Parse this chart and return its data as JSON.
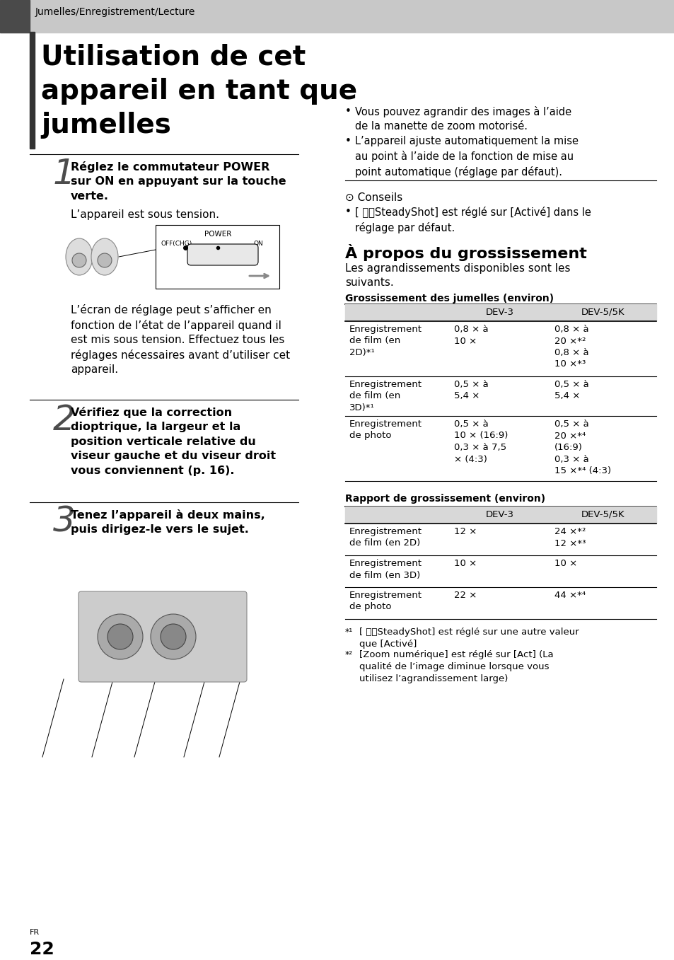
{
  "bg_color": "#ffffff",
  "table_header_bg": "#d8d8d8",
  "header_gray": "#c8c8c8",
  "header_dark": "#4a4a4a",
  "breadcrumb": "Jumelles/Enregistrement/Lecture",
  "title_line1": "Utilisation de cet",
  "title_line2": "appareil en tant que",
  "title_line3": "jumelles",
  "step1_num": "1",
  "step1_bold": "Réglez le commutateur POWER\nsur ON en appuyant sur la touche\nverte.",
  "step1_sub": "L’appareil est sous tension.",
  "step1_cont": "L’écran de réglage peut s’afficher en\nfonction de l’état de l’appareil quand il\nest mis sous tension. Effectuez tous les\nréglages nécessaires avant d’utiliser cet\nappareil.",
  "step2_num": "2",
  "step2_bold": "Vérifiez que la correction\ndioptrique, la largeur et la\nposition verticale relative du\nviseur gauche et du viseur droit\nvous conviennent (p. 16).",
  "step3_num": "3",
  "step3_bold": "Tenez l’appareil à deux mains,\npuis dirigez-le vers le sujet.",
  "bullet1": "Vous pouvez agrandir des images à l’aide\nde la manette de zoom motorisé.",
  "bullet2": "L’appareil ajuste automatiquement la mise\nau point à l’aide de la fonction de mise au\npoint automatique (réglage par défaut).",
  "conseils_title": "Conseils",
  "conseils_bullet": "[ ⌗⌗SteadyShot] est réglé sur [Activé] dans le\nréglage par défaut.",
  "section2_title": "À propos du grossissement",
  "section2_intro": "Les agrandissements disponibles sont les\nsuivants.",
  "table1_title": "Grossissement des jumelles (environ)",
  "table1_col1": [
    "Enregistrement\nde film (en\n2D)*¹",
    "Enregistrement\nde film (en\n3D)*¹",
    "Enregistrement\nde photo"
  ],
  "table1_col2": [
    "0,8 × à\n10 ×",
    "0,5 × à\n5,4 ×",
    "0,5 × à\n10 × (16:9)\n0,3 × à 7,5\n× (4:3)"
  ],
  "table1_col3": [
    "0,8 × à\n20 ×*²\n0,8 × à\n10 ×*³",
    "0,5 × à\n5,4 ×",
    "0,5 × à\n20 ×*⁴\n(16:9)\n0,3 × à\n15 ×*⁴ (4:3)"
  ],
  "table2_title": "Rapport de grossissement (environ)",
  "table2_col1": [
    "Enregistrement\nde film (en 2D)",
    "Enregistrement\nde film (en 3D)",
    "Enregistrement\nde photo"
  ],
  "table2_col2": [
    "12 ×",
    "10 ×",
    "22 ×"
  ],
  "table2_col3": [
    "24 ×*²\n12 ×*³",
    "10 ×",
    "44 ×*⁴"
  ],
  "fn1": "*¹",
  "fn1_text": "[ ⌗⌗SteadyShot] est réglé sur une autre valeur\nque [Activé]",
  "fn2": "*²",
  "fn2_text": "[Zoom numérique] est réglé sur [Act] (La\nqualité de l’image diminue lorsque vous\nutilisez l’agrandissement large)",
  "page_lang": "FR",
  "page_num": "22"
}
